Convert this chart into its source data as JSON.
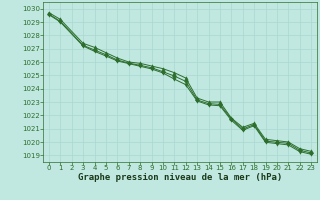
{
  "title": "Graphe pression niveau de la mer (hPa)",
  "bg_color": "#c0e8e0",
  "grid_color": "#a8d8d0",
  "line_color": "#2d6e2d",
  "marker_color": "#2d6e2d",
  "xlim": [
    -0.5,
    23.5
  ],
  "ylim": [
    1018.5,
    1030.5
  ],
  "yticks": [
    1019,
    1020,
    1021,
    1022,
    1023,
    1024,
    1025,
    1026,
    1027,
    1028,
    1029,
    1030
  ],
  "xticks": [
    0,
    1,
    2,
    3,
    4,
    5,
    6,
    7,
    8,
    9,
    10,
    11,
    12,
    13,
    14,
    15,
    16,
    17,
    18,
    19,
    20,
    21,
    22,
    23
  ],
  "series": [
    {
      "x": [
        0,
        1,
        3,
        4,
        5,
        6,
        7,
        8,
        9,
        10,
        11,
        12,
        13,
        14,
        15,
        16,
        17,
        18,
        19,
        20,
        21,
        22,
        23
      ],
      "y": [
        1029.7,
        1029.2,
        1027.4,
        1027.1,
        1026.7,
        1026.3,
        1026.0,
        1025.9,
        1025.7,
        1025.5,
        1025.2,
        1024.8,
        1023.3,
        1023.0,
        1023.0,
        1021.8,
        1021.1,
        1021.4,
        1020.2,
        1020.1,
        1020.0,
        1019.5,
        1019.3
      ],
      "marker": "^",
      "markersize": 2.5,
      "linewidth": 0.7
    },
    {
      "x": [
        0,
        1,
        3,
        4,
        5,
        6,
        7,
        8,
        9,
        10,
        11,
        12,
        13,
        14,
        15,
        16,
        17,
        18,
        19,
        20,
        21,
        22,
        23
      ],
      "y": [
        1029.6,
        1029.05,
        1027.25,
        1026.9,
        1026.55,
        1026.15,
        1025.92,
        1025.75,
        1025.57,
        1025.27,
        1024.95,
        1024.55,
        1023.15,
        1022.88,
        1022.82,
        1021.73,
        1020.98,
        1021.3,
        1020.07,
        1019.98,
        1019.9,
        1019.38,
        1019.18
      ],
      "marker": "D",
      "markersize": 2.0,
      "linewidth": 0.7
    },
    {
      "x": [
        0,
        1,
        3,
        4,
        5,
        6,
        7,
        8,
        9,
        10,
        11,
        12,
        13,
        14,
        15,
        16,
        17,
        18,
        19,
        20,
        21,
        22,
        23
      ],
      "y": [
        1029.55,
        1029.0,
        1027.2,
        1026.8,
        1026.45,
        1026.08,
        1025.88,
        1025.68,
        1025.48,
        1025.18,
        1024.72,
        1024.3,
        1023.08,
        1022.78,
        1022.72,
        1021.63,
        1020.88,
        1021.22,
        1019.98,
        1019.88,
        1019.78,
        1019.28,
        1019.08
      ],
      "marker": "v",
      "markersize": 2.5,
      "linewidth": 0.7
    }
  ],
  "title_fontsize": 6.5,
  "tick_fontsize": 5,
  "font_family": "monospace"
}
